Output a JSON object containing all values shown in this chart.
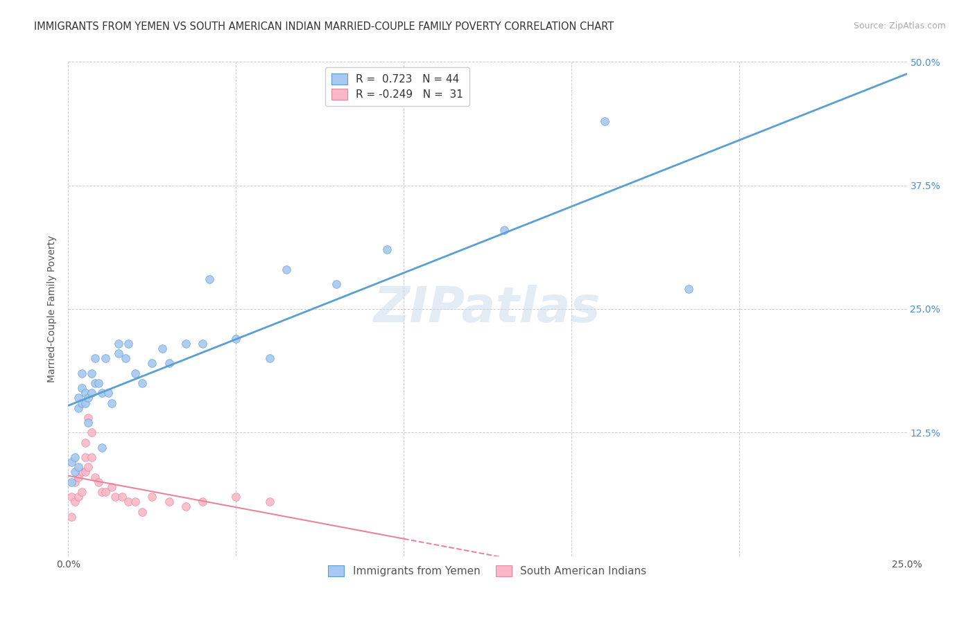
{
  "title": "IMMIGRANTS FROM YEMEN VS SOUTH AMERICAN INDIAN MARRIED-COUPLE FAMILY POVERTY CORRELATION CHART",
  "source": "Source: ZipAtlas.com",
  "ylabel": "Married-Couple Family Poverty",
  "xlim": [
    0.0,
    0.25
  ],
  "ylim": [
    0.0,
    0.5
  ],
  "xticks": [
    0.0,
    0.05,
    0.1,
    0.15,
    0.2,
    0.25
  ],
  "xtick_labels": [
    "0.0%",
    "",
    "",
    "",
    "",
    "25.0%"
  ],
  "yticks": [
    0.0,
    0.125,
    0.25,
    0.375,
    0.5
  ],
  "ytick_labels": [
    "",
    "12.5%",
    "25.0%",
    "37.5%",
    "50.0%"
  ],
  "r_yemen": 0.723,
  "n_yemen": 44,
  "r_indian": -0.249,
  "n_indian": 31,
  "legend_label_blue": "Immigrants from Yemen",
  "legend_label_pink": "South American Indians",
  "watermark": "ZIPatlas",
  "blue_scatter_color": "#a8c8f0",
  "pink_scatter_color": "#f8b8c8",
  "line_blue": "#5a9fd4",
  "line_pink": "#e8849c",
  "yemen_scatter_x": [
    0.001,
    0.001,
    0.002,
    0.002,
    0.003,
    0.003,
    0.003,
    0.004,
    0.004,
    0.004,
    0.005,
    0.005,
    0.006,
    0.006,
    0.007,
    0.007,
    0.008,
    0.008,
    0.009,
    0.01,
    0.01,
    0.011,
    0.012,
    0.013,
    0.015,
    0.015,
    0.017,
    0.018,
    0.02,
    0.022,
    0.025,
    0.028,
    0.03,
    0.035,
    0.04,
    0.042,
    0.05,
    0.06,
    0.065,
    0.08,
    0.095,
    0.13,
    0.16,
    0.185
  ],
  "yemen_scatter_y": [
    0.075,
    0.095,
    0.085,
    0.1,
    0.09,
    0.15,
    0.16,
    0.155,
    0.17,
    0.185,
    0.155,
    0.165,
    0.16,
    0.135,
    0.165,
    0.185,
    0.175,
    0.2,
    0.175,
    0.165,
    0.11,
    0.2,
    0.165,
    0.155,
    0.205,
    0.215,
    0.2,
    0.215,
    0.185,
    0.175,
    0.195,
    0.21,
    0.195,
    0.215,
    0.215,
    0.28,
    0.22,
    0.2,
    0.29,
    0.275,
    0.31,
    0.33,
    0.44,
    0.27
  ],
  "indian_scatter_x": [
    0.001,
    0.001,
    0.002,
    0.002,
    0.003,
    0.003,
    0.004,
    0.004,
    0.005,
    0.005,
    0.005,
    0.006,
    0.006,
    0.007,
    0.007,
    0.008,
    0.009,
    0.01,
    0.011,
    0.013,
    0.014,
    0.016,
    0.018,
    0.02,
    0.022,
    0.025,
    0.03,
    0.035,
    0.04,
    0.05,
    0.06
  ],
  "indian_scatter_y": [
    0.04,
    0.06,
    0.055,
    0.075,
    0.06,
    0.08,
    0.065,
    0.085,
    0.085,
    0.1,
    0.115,
    0.09,
    0.14,
    0.1,
    0.125,
    0.08,
    0.075,
    0.065,
    0.065,
    0.07,
    0.06,
    0.06,
    0.055,
    0.055,
    0.045,
    0.06,
    0.055,
    0.05,
    0.055,
    0.06,
    0.055
  ],
  "title_fontsize": 10.5,
  "axis_label_fontsize": 10,
  "tick_fontsize": 10,
  "source_fontsize": 9,
  "background_color": "#ffffff",
  "grid_color": "#cccccc"
}
